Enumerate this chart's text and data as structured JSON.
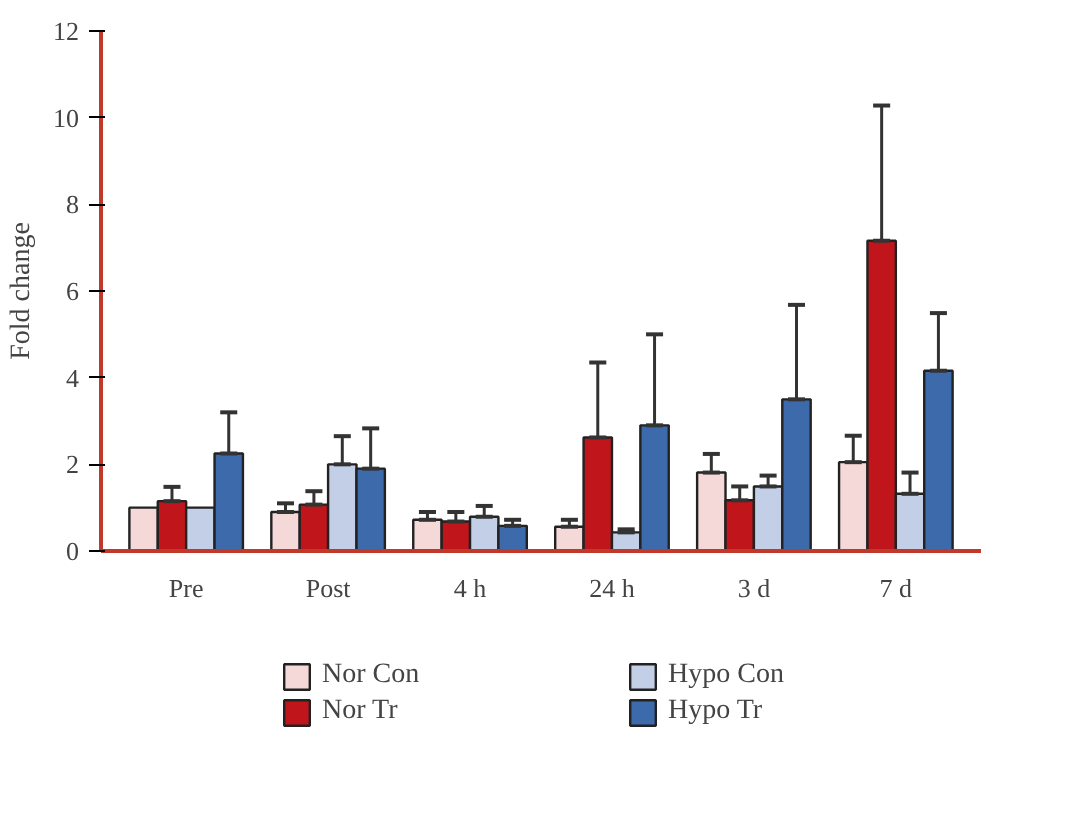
{
  "chart_data": {
    "type": "bar",
    "ylabel": "Fold change",
    "categories": [
      "Pre",
      "Post",
      "4 h",
      "24 h",
      "3 d",
      "7 d"
    ],
    "ylim": [
      0,
      12
    ],
    "yticks": [
      0,
      2,
      4,
      6,
      8,
      10,
      12
    ],
    "grid": false,
    "legend": "bottom",
    "series": [
      {
        "name": "Nor Con",
        "color": "#f5d8d8",
        "values": [
          1.0,
          0.9,
          0.72,
          0.56,
          1.81,
          2.05
        ],
        "errors": [
          null,
          [
            0.9,
            1.1
          ],
          [
            0.72,
            0.9
          ],
          [
            0.56,
            0.72
          ],
          [
            1.81,
            2.24
          ],
          [
            2.05,
            2.66
          ]
        ]
      },
      {
        "name": "Nor Tr",
        "color": "#c0161b",
        "values": [
          1.15,
          1.07,
          0.68,
          2.62,
          1.17,
          7.16
        ],
        "errors": [
          [
            1.15,
            1.48
          ],
          [
            1.07,
            1.38
          ],
          [
            0.68,
            0.9
          ],
          [
            2.62,
            4.35
          ],
          [
            1.17,
            1.49
          ],
          [
            7.16,
            10.28
          ]
        ]
      },
      {
        "name": "Hypo Con",
        "color": "#c3cfe6",
        "values": [
          1.0,
          2.0,
          0.79,
          0.43,
          1.49,
          1.32
        ],
        "errors": [
          null,
          [
            2.0,
            2.65
          ],
          [
            0.79,
            1.04
          ],
          [
            0.43,
            0.5
          ],
          [
            1.49,
            1.74
          ],
          [
            1.32,
            1.81
          ]
        ]
      },
      {
        "name": "Hypo Tr",
        "color": "#3d6aab",
        "values": [
          2.25,
          1.9,
          0.58,
          2.9,
          3.5,
          4.16
        ],
        "errors": [
          [
            2.25,
            3.2
          ],
          [
            1.9,
            2.83
          ],
          [
            0.58,
            0.72
          ],
          [
            2.9,
            5.0
          ],
          [
            3.5,
            5.68
          ],
          [
            4.16,
            5.49
          ]
        ]
      }
    ]
  }
}
